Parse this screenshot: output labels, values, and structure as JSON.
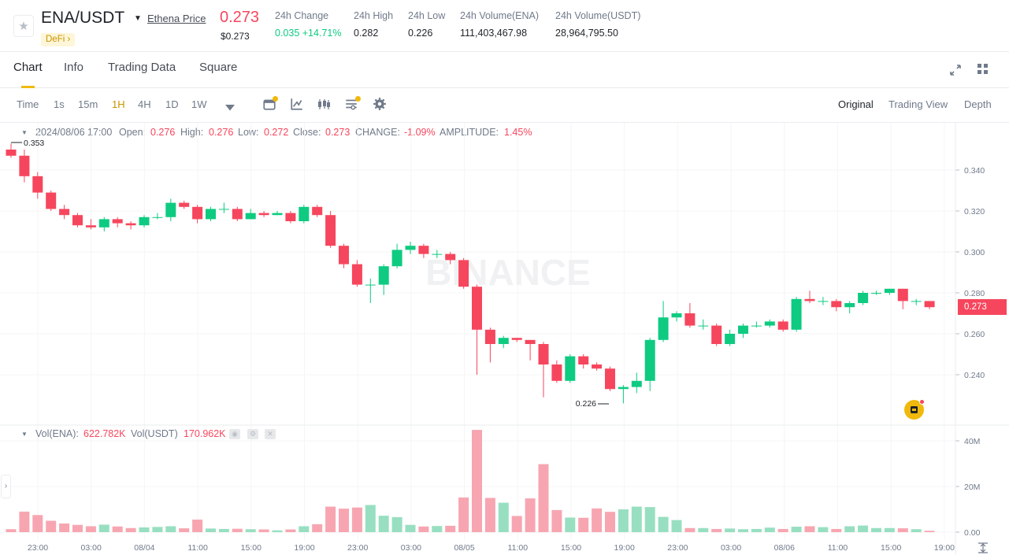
{
  "header": {
    "pair": "ENA/USDT",
    "price_link": "Ethena Price",
    "tag": "DeFi",
    "tag_arrow": "›",
    "last_price": "0.273",
    "last_price_usd": "$0.273",
    "stats": [
      {
        "label": "24h Change",
        "value": "0.035 +14.71%"
      },
      {
        "label": "24h High",
        "value": "0.282"
      },
      {
        "label": "24h Low",
        "value": "0.226"
      },
      {
        "label": "24h Volume(ENA)",
        "value": "111,403,467.98"
      },
      {
        "label": "24h Volume(USDT)",
        "value": "28,964,795.50"
      }
    ]
  },
  "tabs": [
    "Chart",
    "Info",
    "Trading Data",
    "Square"
  ],
  "active_tab": "Chart",
  "toolbar": {
    "timeframes": [
      "Time",
      "1s",
      "15m",
      "1H",
      "4H",
      "1D",
      "1W"
    ],
    "active_timeframe": "1H",
    "views": [
      "Original",
      "Trading View",
      "Depth"
    ],
    "active_view": "Original"
  },
  "ohlc": {
    "time": "2024/08/06 17:00",
    "open_label": "Open:",
    "open": "0.276",
    "high_label": "High:",
    "high": "0.276",
    "low_label": "Low:",
    "low": "0.272",
    "close_label": "Close:",
    "close": "0.273",
    "change_label": "CHANGE:",
    "change": "-1.09%",
    "amplitude_label": "AMPLITUDE:",
    "amplitude": "1.45%"
  },
  "volume_header": {
    "ena_label": "Vol(ENA):",
    "ena": "622.782K",
    "usdt_label": "Vol(USDT)",
    "usdt": "170.962K"
  },
  "watermark": "BINANCE",
  "current_price_tag": "0.273",
  "colors": {
    "up": "#0ecb81",
    "down": "#f6465d",
    "accent": "#f0b90b"
  },
  "chart_data": {
    "type": "candlestick",
    "price_axis_ticks": [
      "0.340",
      "0.320",
      "0.300",
      "0.280",
      "0.260",
      "0.240"
    ],
    "volume_axis_ticks": [
      "40M",
      "20M",
      "0.00"
    ],
    "time_axis_ticks": [
      "23:00",
      "03:00",
      "08/04",
      "11:00",
      "15:00",
      "19:00",
      "23:00",
      "03:00",
      "08/05",
      "11:00",
      "15:00",
      "19:00",
      "23:00",
      "03:00",
      "08/06",
      "11:00",
      "15:00",
      "19:00"
    ],
    "ylim": [
      0.222,
      0.356
    ],
    "high_marker": "0.353",
    "low_marker": "0.226",
    "candles": [
      [
        0.35,
        0.347,
        0.353,
        0.346,
        1.3
      ],
      [
        0.347,
        0.337,
        0.35,
        0.334,
        9.0
      ],
      [
        0.337,
        0.329,
        0.339,
        0.326,
        7.5
      ],
      [
        0.329,
        0.321,
        0.33,
        0.32,
        5.0
      ],
      [
        0.321,
        0.318,
        0.323,
        0.316,
        3.8
      ],
      [
        0.318,
        0.313,
        0.319,
        0.312,
        3.2
      ],
      [
        0.313,
        0.312,
        0.316,
        0.311,
        2.6
      ],
      [
        0.312,
        0.316,
        0.317,
        0.31,
        3.3
      ],
      [
        0.316,
        0.314,
        0.317,
        0.312,
        2.5
      ],
      [
        0.314,
        0.313,
        0.315,
        0.311,
        1.8
      ],
      [
        0.313,
        0.317,
        0.318,
        0.312,
        2.1
      ],
      [
        0.317,
        0.317,
        0.319,
        0.316,
        2.3
      ],
      [
        0.317,
        0.324,
        0.326,
        0.315,
        2.6
      ],
      [
        0.324,
        0.322,
        0.325,
        0.321,
        1.7
      ],
      [
        0.322,
        0.316,
        0.323,
        0.314,
        5.5
      ],
      [
        0.316,
        0.321,
        0.322,
        0.315,
        1.6
      ],
      [
        0.321,
        0.321,
        0.324,
        0.319,
        1.4
      ],
      [
        0.321,
        0.316,
        0.322,
        0.315,
        1.5
      ],
      [
        0.316,
        0.319,
        0.321,
        0.316,
        1.3
      ],
      [
        0.319,
        0.318,
        0.32,
        0.317,
        1.2
      ],
      [
        0.318,
        0.319,
        0.32,
        0.318,
        0.8
      ],
      [
        0.319,
        0.315,
        0.32,
        0.314,
        1.2
      ],
      [
        0.315,
        0.322,
        0.323,
        0.314,
        2.6
      ],
      [
        0.322,
        0.318,
        0.323,
        0.317,
        3.5
      ],
      [
        0.318,
        0.303,
        0.32,
        0.302,
        11.2
      ],
      [
        0.303,
        0.294,
        0.304,
        0.292,
        10.3
      ],
      [
        0.294,
        0.284,
        0.296,
        0.283,
        10.8
      ],
      [
        0.284,
        0.284,
        0.287,
        0.275,
        11.9
      ],
      [
        0.284,
        0.293,
        0.294,
        0.279,
        7.2
      ],
      [
        0.293,
        0.301,
        0.304,
        0.292,
        6.6
      ],
      [
        0.301,
        0.303,
        0.305,
        0.299,
        3.2
      ],
      [
        0.303,
        0.299,
        0.304,
        0.297,
        2.5
      ],
      [
        0.299,
        0.299,
        0.301,
        0.297,
        2.7
      ],
      [
        0.299,
        0.296,
        0.3,
        0.294,
        2.8
      ],
      [
        0.296,
        0.283,
        0.297,
        0.282,
        15.2
      ],
      [
        0.283,
        0.262,
        0.284,
        0.24,
        44.8
      ],
      [
        0.262,
        0.255,
        0.263,
        0.246,
        15.0
      ],
      [
        0.255,
        0.258,
        0.259,
        0.253,
        12.9
      ],
      [
        0.258,
        0.257,
        0.258,
        0.256,
        7.1
      ],
      [
        0.257,
        0.255,
        0.257,
        0.247,
        14.8
      ],
      [
        0.255,
        0.245,
        0.256,
        0.229,
        29.8
      ],
      [
        0.245,
        0.237,
        0.247,
        0.236,
        9.7
      ],
      [
        0.237,
        0.249,
        0.25,
        0.236,
        6.4
      ],
      [
        0.249,
        0.245,
        0.25,
        0.243,
        6.3
      ],
      [
        0.245,
        0.243,
        0.246,
        0.242,
        10.4
      ],
      [
        0.243,
        0.233,
        0.244,
        0.232,
        8.9
      ],
      [
        0.233,
        0.234,
        0.235,
        0.226,
        10.0
      ],
      [
        0.234,
        0.237,
        0.241,
        0.231,
        11.2
      ],
      [
        0.237,
        0.257,
        0.258,
        0.232,
        11.0
      ],
      [
        0.257,
        0.268,
        0.276,
        0.256,
        6.7
      ],
      [
        0.268,
        0.27,
        0.271,
        0.266,
        5.3
      ],
      [
        0.27,
        0.264,
        0.275,
        0.263,
        1.8
      ],
      [
        0.264,
        0.264,
        0.267,
        0.262,
        1.8
      ],
      [
        0.264,
        0.255,
        0.265,
        0.254,
        1.4
      ],
      [
        0.255,
        0.26,
        0.262,
        0.254,
        1.6
      ],
      [
        0.26,
        0.264,
        0.265,
        0.258,
        1.3
      ],
      [
        0.264,
        0.264,
        0.266,
        0.263,
        1.4
      ],
      [
        0.264,
        0.266,
        0.267,
        0.263,
        2.0
      ],
      [
        0.266,
        0.262,
        0.267,
        0.261,
        1.4
      ],
      [
        0.262,
        0.277,
        0.278,
        0.261,
        2.4
      ],
      [
        0.277,
        0.276,
        0.281,
        0.275,
        2.6
      ],
      [
        0.276,
        0.276,
        0.278,
        0.274,
        2.2
      ],
      [
        0.276,
        0.273,
        0.277,
        0.271,
        1.4
      ],
      [
        0.273,
        0.275,
        0.276,
        0.27,
        2.6
      ],
      [
        0.275,
        0.28,
        0.281,
        0.274,
        2.9
      ],
      [
        0.28,
        0.28,
        0.281,
        0.279,
        1.8
      ],
      [
        0.28,
        0.282,
        0.282,
        0.279,
        1.8
      ],
      [
        0.282,
        0.276,
        0.282,
        0.272,
        1.7
      ],
      [
        0.276,
        0.276,
        0.277,
        0.274,
        1.3
      ],
      [
        0.276,
        0.273,
        0.276,
        0.272,
        0.6
      ]
    ]
  }
}
